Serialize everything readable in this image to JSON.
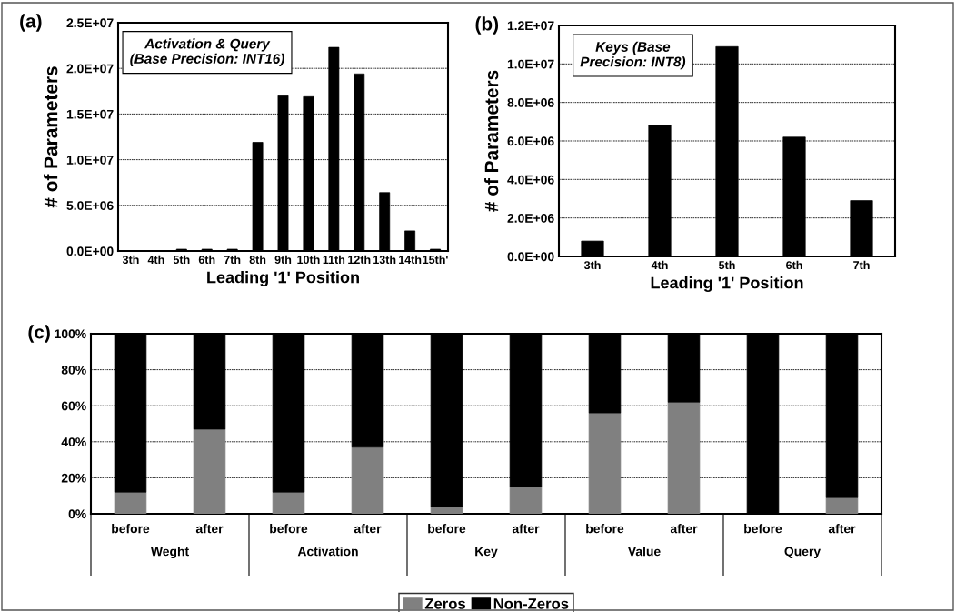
{
  "chart_data": [
    {
      "type": "bar",
      "title": "(a)",
      "xlabel": "Leading '1' Position",
      "ylabel": "# of Parameters",
      "annotations": [
        "Activation & Query\n(Base Precision: INT16)"
      ],
      "categories": [
        "3th",
        "4th",
        "5th",
        "6th",
        "7th",
        "8th",
        "9th",
        "10th",
        "11th",
        "12th",
        "13th",
        "14th",
        "15th'"
      ],
      "values": [
        0,
        0,
        200000,
        200000,
        200000,
        11900000,
        17000000,
        16900000,
        22300000,
        19400000,
        6400000,
        2200000,
        200000
      ],
      "color": "#000000",
      "ylim": [
        0,
        25000000
      ],
      "yticks": [
        {
          "value": 0,
          "label": "0.0E+00"
        },
        {
          "value": 5000000,
          "label": "5.0E+06"
        },
        {
          "value": 10000000,
          "label": "1.0E+07"
        },
        {
          "value": 15000000,
          "label": "1.5E+07"
        },
        {
          "value": 20000000,
          "label": "2.0E+07"
        },
        {
          "value": 25000000,
          "label": "2.5E+07"
        }
      ],
      "grid": "y"
    },
    {
      "type": "bar",
      "title": "(b)",
      "xlabel": "Leading '1' Position",
      "ylabel": "# of Parameters",
      "annotations": [
        "Keys (Base\nPrecision: INT8)"
      ],
      "categories": [
        "3th",
        "4th",
        "5th",
        "6th",
        "7th"
      ],
      "values": [
        800000,
        6800000,
        10900000,
        6200000,
        2900000
      ],
      "color": "#000000",
      "ylim": [
        0,
        12000000
      ],
      "yticks": [
        {
          "value": 0,
          "label": "0.0E+00"
        },
        {
          "value": 2000000,
          "label": "2.0E+06"
        },
        {
          "value": 4000000,
          "label": "4.0E+06"
        },
        {
          "value": 6000000,
          "label": "6.0E+06"
        },
        {
          "value": 8000000,
          "label": "8.0E+06"
        },
        {
          "value": 10000000,
          "label": "1.0E+07"
        },
        {
          "value": 12000000,
          "label": "1.2E+07"
        }
      ],
      "grid": "y"
    },
    {
      "type": "bar",
      "title": "(c)",
      "stacked": true,
      "annotations": [
        "Weght",
        "Activation",
        "Key",
        "Value",
        "Query"
      ],
      "categories": [
        "before",
        "after",
        "before",
        "after",
        "before",
        "after",
        "before",
        "after",
        "before",
        "after"
      ],
      "series": [
        {
          "name": "Zeros",
          "color": "#808080",
          "values": [
            12,
            47,
            12,
            37,
            4,
            15,
            56,
            62,
            0,
            9
          ]
        },
        {
          "name": "Non-Zeros",
          "color": "#000000",
          "values": [
            88,
            53,
            88,
            63,
            96,
            85,
            44,
            38,
            100,
            91
          ]
        }
      ],
      "ylim": [
        0,
        100
      ],
      "yticks": [
        {
          "value": 0,
          "label": "0%"
        },
        {
          "value": 20,
          "label": "20%"
        },
        {
          "value": 40,
          "label": "40%"
        },
        {
          "value": 60,
          "label": "60%"
        },
        {
          "value": 80,
          "label": "80%"
        },
        {
          "value": 100,
          "label": "100%"
        }
      ],
      "grid": "y",
      "legend": "bottom"
    }
  ]
}
